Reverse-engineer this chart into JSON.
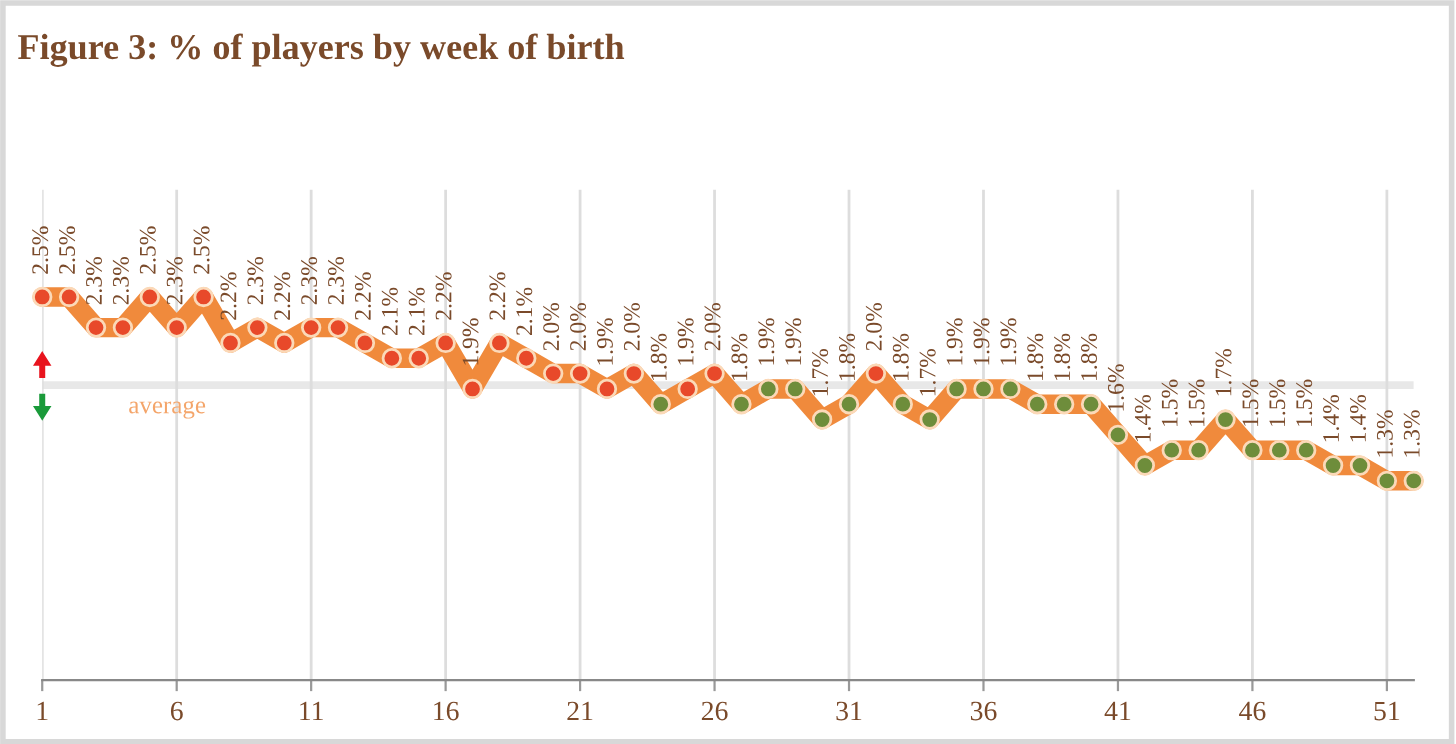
{
  "chart_data": {
    "type": "line",
    "title": "Figure 3: % of players by week of birth",
    "x": [
      1,
      2,
      3,
      4,
      5,
      6,
      7,
      8,
      9,
      10,
      11,
      12,
      13,
      14,
      15,
      16,
      17,
      18,
      19,
      20,
      21,
      22,
      23,
      24,
      25,
      26,
      27,
      28,
      29,
      30,
      31,
      32,
      33,
      34,
      35,
      36,
      37,
      38,
      39,
      40,
      41,
      42,
      43,
      44,
      45,
      46,
      47,
      48,
      49,
      50,
      51,
      52
    ],
    "series": [
      {
        "color": "#f08a3c",
        "values": [
          2.5,
          2.5,
          2.3,
          2.3,
          2.5,
          2.3,
          2.5,
          2.2,
          2.3,
          2.2,
          2.3,
          2.3,
          2.2,
          2.1,
          2.1,
          2.2,
          1.9,
          2.2,
          2.1,
          2.0,
          2.0,
          1.9,
          2.0,
          1.8,
          1.9,
          2.0,
          1.8,
          1.9,
          1.9,
          1.7,
          1.8,
          2.0,
          1.8,
          1.7,
          1.9,
          1.9,
          1.9,
          1.8,
          1.8,
          1.8,
          1.6,
          1.4,
          1.5,
          1.5,
          1.7,
          1.5,
          1.5,
          1.5,
          1.4,
          1.4,
          1.3,
          1.3
        ],
        "colors": [
          "#e8492a",
          "#e8492a",
          "#e8492a",
          "#e8492a",
          "#e8492a",
          "#e8492a",
          "#e8492a",
          "#e8492a",
          "#e8492a",
          "#e8492a",
          "#e8492a",
          "#e8492a",
          "#e8492a",
          "#e8492a",
          "#e8492a",
          "#e8492a",
          "#e8492a",
          "#e8492a",
          "#e8492a",
          "#e8492a",
          "#e8492a",
          "#e8492a",
          "#e8492a",
          "#6e8d3b",
          "#e8492a",
          "#e8492a",
          "#6e8d3b",
          "#6e8d3b",
          "#6e8d3b",
          "#6e8d3b",
          "#6e8d3b",
          "#e8492a",
          "#6e8d3b",
          "#6e8d3b",
          "#6e8d3b",
          "#6e8d3b",
          "#6e8d3b",
          "#6e8d3b",
          "#6e8d3b",
          "#6e8d3b",
          "#6e8d3b",
          "#6e8d3b",
          "#6e8d3b",
          "#6e8d3b",
          "#6e8d3b",
          "#6e8d3b",
          "#6e8d3b",
          "#6e8d3b",
          "#6e8d3b",
          "#6e8d3b",
          "#6e8d3b",
          "#6e8d3b"
        ],
        "value_labels": [
          "2.5%",
          "2.5%",
          "2.3%",
          "2.3%",
          "2.5%",
          "2.3%",
          "2.5%",
          "2.2%",
          "2.3%",
          "2.2%",
          "2.3%",
          "2.3%",
          "2.2%",
          "2.1%",
          "2.1%",
          "2.2%",
          "1.9%",
          "2.2%",
          "2.1%",
          "2.0%",
          "2.0%",
          "1.9%",
          "2.0%",
          "1.8%",
          "1.9%",
          "2.0%",
          "1.8%",
          "1.9%",
          "1.9%",
          "1.7%",
          "1.8%",
          "2.0%",
          "1.8%",
          "1.7%",
          "1.9%",
          "1.9%",
          "1.9%",
          "1.8%",
          "1.8%",
          "1.8%",
          "1.6%",
          "1.4%",
          "1.5%",
          "1.5%",
          "1.7%",
          "1.5%",
          "1.5%",
          "1.5%",
          "1.4%",
          "1.4%",
          "1.3%",
          "1.3%"
        ]
      }
    ],
    "marker": "circle",
    "line_style": "solid",
    "xlim": [
      1,
      52
    ],
    "xticks": [
      1,
      6,
      11,
      16,
      21,
      26,
      31,
      36,
      41,
      46,
      51
    ],
    "ylim": [
      0,
      3.2
    ],
    "tick_labels": "x",
    "grid": "x",
    "bands": [
      {
        "axis": "y",
        "from": 1.9,
        "to": 1.95,
        "label": "average",
        "color": "#e8e8e8"
      }
    ],
    "legend": false
  }
}
